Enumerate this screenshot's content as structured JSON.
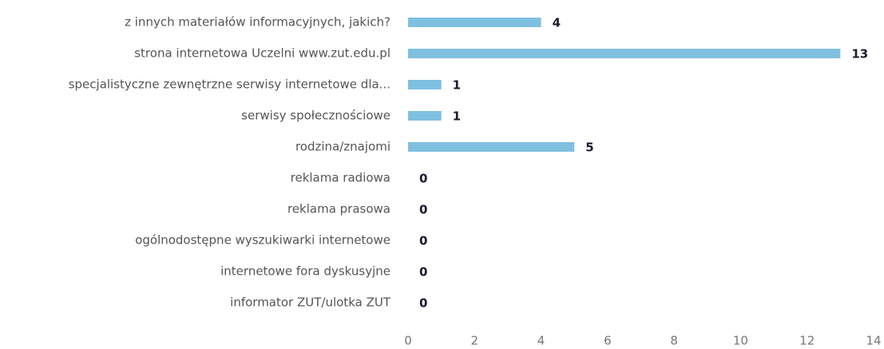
{
  "chart_data": {
    "type": "bar",
    "orientation": "horizontal",
    "categories": [
      "z innych materiałów informacyjnych, jakich?",
      "strona internetowa Uczelni www.zut.edu.pl",
      "specjalistyczne zewnętrzne serwisy internetowe dla...",
      "serwisy społecznościowe",
      "rodzina/znajomi",
      "reklama radiowa",
      "reklama prasowa",
      "ogólnodostępne wyszukiwarki internetowe",
      "internetowe fora dyskusyjne",
      "informator ZUT/ulotka ZUT"
    ],
    "values": [
      4,
      13,
      1,
      1,
      5,
      0,
      0,
      0,
      0,
      0
    ],
    "color": "#7fc0e0",
    "xlim": [
      0,
      14
    ],
    "xticks": [
      0,
      2,
      4,
      6,
      8,
      10,
      12,
      14
    ],
    "grid": false
  }
}
